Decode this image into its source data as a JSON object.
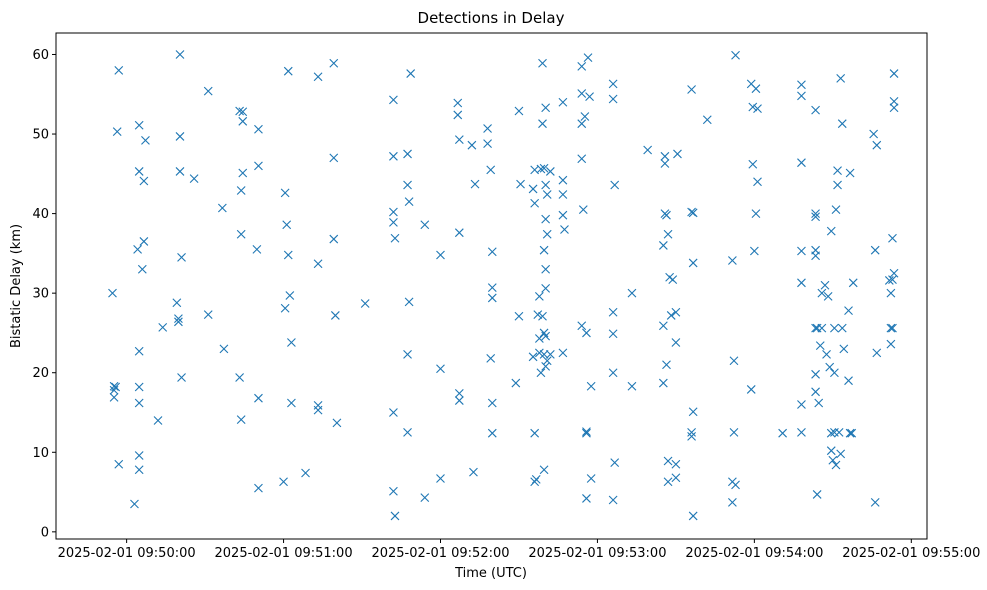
{
  "chart_data": {
    "type": "scatter",
    "title": "Detections in Delay",
    "xlabel": "Time (UTC)",
    "ylabel": "Bistatic Delay (km)",
    "marker": "x",
    "color": "#1f77b4",
    "x_unit": "minutes since 2025-02-01 09:50:00",
    "xlim": [
      -0.45,
      5.1
    ],
    "ylim": [
      -0.9,
      62.7
    ],
    "x_ticks": [
      {
        "value": 0,
        "label": "2025-02-01 09:50:00"
      },
      {
        "value": 1,
        "label": "2025-02-01 09:51:00"
      },
      {
        "value": 2,
        "label": "2025-02-01 09:52:00"
      },
      {
        "value": 3,
        "label": "2025-02-01 09:53:00"
      },
      {
        "value": 4,
        "label": "2025-02-01 09:54:00"
      },
      {
        "value": 5,
        "label": "2025-02-01 09:55:00"
      }
    ],
    "y_ticks": [
      {
        "value": 0,
        "label": "0"
      },
      {
        "value": 10,
        "label": "10"
      },
      {
        "value": 20,
        "label": "20"
      },
      {
        "value": 30,
        "label": "30"
      },
      {
        "value": 40,
        "label": "40"
      },
      {
        "value": 50,
        "label": "50"
      },
      {
        "value": 60,
        "label": "60"
      }
    ],
    "points": [
      [
        -0.09,
        30.0
      ],
      [
        -0.08,
        18.3
      ],
      [
        -0.08,
        17.8
      ],
      [
        -0.08,
        16.9
      ],
      [
        -0.07,
        18.2
      ],
      [
        -0.06,
        50.3
      ],
      [
        -0.05,
        58.0
      ],
      [
        -0.05,
        8.5
      ],
      [
        0.05,
        3.5
      ],
      [
        0.07,
        35.5
      ],
      [
        0.08,
        51.1
      ],
      [
        0.08,
        45.3
      ],
      [
        0.08,
        22.7
      ],
      [
        0.08,
        18.2
      ],
      [
        0.08,
        16.2
      ],
      [
        0.08,
        9.6
      ],
      [
        0.08,
        7.8
      ],
      [
        0.1,
        33.0
      ],
      [
        0.11,
        44.1
      ],
      [
        0.11,
        36.5
      ],
      [
        0.12,
        49.2
      ],
      [
        0.2,
        14.0
      ],
      [
        0.23,
        25.7
      ],
      [
        0.32,
        28.8
      ],
      [
        0.33,
        26.8
      ],
      [
        0.33,
        26.4
      ],
      [
        0.34,
        60.0
      ],
      [
        0.34,
        49.7
      ],
      [
        0.34,
        45.3
      ],
      [
        0.35,
        34.5
      ],
      [
        0.35,
        19.4
      ],
      [
        0.43,
        44.4
      ],
      [
        0.52,
        55.4
      ],
      [
        0.52,
        27.3
      ],
      [
        0.61,
        40.7
      ],
      [
        0.62,
        23.0
      ],
      [
        0.72,
        52.9
      ],
      [
        0.72,
        19.4
      ],
      [
        0.73,
        42.9
      ],
      [
        0.73,
        37.4
      ],
      [
        0.73,
        14.1
      ],
      [
        0.74,
        52.8
      ],
      [
        0.74,
        51.6
      ],
      [
        0.74,
        45.1
      ],
      [
        0.84,
        50.6
      ],
      [
        0.84,
        46.0
      ],
      [
        0.83,
        35.5
      ],
      [
        0.84,
        16.8
      ],
      [
        0.84,
        5.5
      ],
      [
        1.01,
        42.6
      ],
      [
        1.01,
        28.1
      ],
      [
        1.0,
        6.3
      ],
      [
        1.02,
        38.6
      ],
      [
        1.03,
        57.9
      ],
      [
        1.03,
        34.8
      ],
      [
        1.04,
        29.7
      ],
      [
        1.05,
        23.8
      ],
      [
        1.05,
        16.2
      ],
      [
        1.14,
        7.4
      ],
      [
        1.22,
        57.2
      ],
      [
        1.22,
        33.7
      ],
      [
        1.22,
        15.9
      ],
      [
        1.22,
        15.3
      ],
      [
        1.32,
        58.9
      ],
      [
        1.32,
        47.0
      ],
      [
        1.32,
        36.8
      ],
      [
        1.33,
        27.2
      ],
      [
        1.34,
        13.7
      ],
      [
        1.52,
        28.7
      ],
      [
        1.7,
        54.3
      ],
      [
        1.7,
        47.2
      ],
      [
        1.7,
        40.2
      ],
      [
        1.7,
        38.9
      ],
      [
        1.71,
        36.9
      ],
      [
        1.7,
        15.0
      ],
      [
        1.7,
        5.1
      ],
      [
        1.71,
        2.0
      ],
      [
        1.79,
        47.5
      ],
      [
        1.79,
        43.6
      ],
      [
        1.8,
        41.5
      ],
      [
        1.8,
        28.9
      ],
      [
        1.79,
        22.3
      ],
      [
        1.79,
        12.5
      ],
      [
        1.81,
        57.6
      ],
      [
        1.9,
        38.6
      ],
      [
        1.9,
        4.3
      ],
      [
        2.0,
        34.8
      ],
      [
        2.0,
        20.5
      ],
      [
        2.0,
        6.7
      ],
      [
        2.11,
        53.9
      ],
      [
        2.11,
        52.4
      ],
      [
        2.12,
        49.3
      ],
      [
        2.12,
        37.6
      ],
      [
        2.12,
        17.4
      ],
      [
        2.12,
        16.5
      ],
      [
        2.2,
        48.6
      ],
      [
        2.22,
        43.7
      ],
      [
        2.21,
        7.5
      ],
      [
        2.3,
        50.7
      ],
      [
        2.3,
        48.8
      ],
      [
        2.32,
        45.5
      ],
      [
        2.33,
        35.2
      ],
      [
        2.33,
        30.7
      ],
      [
        2.33,
        29.4
      ],
      [
        2.32,
        21.8
      ],
      [
        2.33,
        16.2
      ],
      [
        2.33,
        12.4
      ],
      [
        2.48,
        18.7
      ],
      [
        2.5,
        52.9
      ],
      [
        2.51,
        43.7
      ],
      [
        2.5,
        27.1
      ],
      [
        2.6,
        45.5
      ],
      [
        2.59,
        43.1
      ],
      [
        2.6,
        41.3
      ],
      [
        2.59,
        22.0
      ],
      [
        2.6,
        6.3
      ],
      [
        2.6,
        12.4
      ],
      [
        2.61,
        6.6
      ],
      [
        2.62,
        27.3
      ],
      [
        2.63,
        29.6
      ],
      [
        2.63,
        24.3
      ],
      [
        2.63,
        22.5
      ],
      [
        2.64,
        45.6
      ],
      [
        2.64,
        20.0
      ],
      [
        2.65,
        58.9
      ],
      [
        2.65,
        51.3
      ],
      [
        2.65,
        27.1
      ],
      [
        2.66,
        45.7
      ],
      [
        2.66,
        35.4
      ],
      [
        2.66,
        25.0
      ],
      [
        2.66,
        22.3
      ],
      [
        2.66,
        7.8
      ],
      [
        2.67,
        53.3
      ],
      [
        2.67,
        43.6
      ],
      [
        2.67,
        39.3
      ],
      [
        2.67,
        33.0
      ],
      [
        2.67,
        30.6
      ],
      [
        2.67,
        24.6
      ],
      [
        2.67,
        20.8
      ],
      [
        2.68,
        42.4
      ],
      [
        2.68,
        37.4
      ],
      [
        2.68,
        21.5
      ],
      [
        2.7,
        45.3
      ],
      [
        2.7,
        22.3
      ],
      [
        2.78,
        54.0
      ],
      [
        2.78,
        44.2
      ],
      [
        2.78,
        42.4
      ],
      [
        2.78,
        39.8
      ],
      [
        2.79,
        38.0
      ],
      [
        2.78,
        22.5
      ],
      [
        2.9,
        58.5
      ],
      [
        2.9,
        55.1
      ],
      [
        2.9,
        51.3
      ],
      [
        2.9,
        46.9
      ],
      [
        2.9,
        25.9
      ],
      [
        2.91,
        40.5
      ],
      [
        2.92,
        52.2
      ],
      [
        2.93,
        12.6
      ],
      [
        2.93,
        12.4
      ],
      [
        2.93,
        4.2
      ],
      [
        2.93,
        25.0
      ],
      [
        2.94,
        59.6
      ],
      [
        2.95,
        54.7
      ],
      [
        2.96,
        18.3
      ],
      [
        2.96,
        6.7
      ],
      [
        3.1,
        54.4
      ],
      [
        3.1,
        56.3
      ],
      [
        3.11,
        43.6
      ],
      [
        3.1,
        27.6
      ],
      [
        3.1,
        24.9
      ],
      [
        3.1,
        20.0
      ],
      [
        3.1,
        4.0
      ],
      [
        3.11,
        8.7
      ],
      [
        3.22,
        30.0
      ],
      [
        3.22,
        18.3
      ],
      [
        3.32,
        48.0
      ],
      [
        3.43,
        47.2
      ],
      [
        3.42,
        36.0
      ],
      [
        3.42,
        25.9
      ],
      [
        3.42,
        18.7
      ],
      [
        3.43,
        46.3
      ],
      [
        3.43,
        40.0
      ],
      [
        3.44,
        39.8
      ],
      [
        3.44,
        21.0
      ],
      [
        3.45,
        37.4
      ],
      [
        3.45,
        8.9
      ],
      [
        3.45,
        6.3
      ],
      [
        3.46,
        32.0
      ],
      [
        3.47,
        27.2
      ],
      [
        3.48,
        31.7
      ],
      [
        3.5,
        27.6
      ],
      [
        3.5,
        23.8
      ],
      [
        3.5,
        8.5
      ],
      [
        3.5,
        6.8
      ],
      [
        3.51,
        47.5
      ],
      [
        3.6,
        55.6
      ],
      [
        3.6,
        40.2
      ],
      [
        3.61,
        40.1
      ],
      [
        3.6,
        12.5
      ],
      [
        3.6,
        12.0
      ],
      [
        3.61,
        33.8
      ],
      [
        3.61,
        15.1
      ],
      [
        3.61,
        2.0
      ],
      [
        3.7,
        51.8
      ],
      [
        3.88,
        59.9
      ],
      [
        3.86,
        34.1
      ],
      [
        3.87,
        21.5
      ],
      [
        3.87,
        12.5
      ],
      [
        3.86,
        6.3
      ],
      [
        3.86,
        3.7
      ],
      [
        3.88,
        5.9
      ],
      [
        3.98,
        56.3
      ],
      [
        3.99,
        53.4
      ],
      [
        3.99,
        46.2
      ],
      [
        3.98,
        17.9
      ],
      [
        4.0,
        35.3
      ],
      [
        4.01,
        55.7
      ],
      [
        4.02,
        53.2
      ],
      [
        4.01,
        40.0
      ],
      [
        4.02,
        44.0
      ],
      [
        4.18,
        12.4
      ],
      [
        4.3,
        56.2
      ],
      [
        4.3,
        54.8
      ],
      [
        4.3,
        46.4
      ],
      [
        4.3,
        35.3
      ],
      [
        4.3,
        31.3
      ],
      [
        4.3,
        16.0
      ],
      [
        4.3,
        12.5
      ],
      [
        4.39,
        53.0
      ],
      [
        4.39,
        40.0
      ],
      [
        4.39,
        39.6
      ],
      [
        4.39,
        35.4
      ],
      [
        4.39,
        34.7
      ],
      [
        4.39,
        25.6
      ],
      [
        4.39,
        19.8
      ],
      [
        4.39,
        17.6
      ],
      [
        4.4,
        25.6
      ],
      [
        4.4,
        4.7
      ],
      [
        4.41,
        16.2
      ],
      [
        4.42,
        23.4
      ],
      [
        4.43,
        30.0
      ],
      [
        4.43,
        25.6
      ],
      [
        4.45,
        31.0
      ],
      [
        4.46,
        22.3
      ],
      [
        4.47,
        29.6
      ],
      [
        4.49,
        37.8
      ],
      [
        4.48,
        20.7
      ],
      [
        4.49,
        12.4
      ],
      [
        4.49,
        10.2
      ],
      [
        4.5,
        9.0
      ],
      [
        4.51,
        20.0
      ],
      [
        4.51,
        25.6
      ],
      [
        4.51,
        12.5
      ],
      [
        4.52,
        8.4
      ],
      [
        4.52,
        40.5
      ],
      [
        4.53,
        45.4
      ],
      [
        4.53,
        43.6
      ],
      [
        4.54,
        12.5
      ],
      [
        4.55,
        57.0
      ],
      [
        4.55,
        9.8
      ],
      [
        4.56,
        25.6
      ],
      [
        4.56,
        51.3
      ],
      [
        4.57,
        23.0
      ],
      [
        4.6,
        19.0
      ],
      [
        4.6,
        27.8
      ],
      [
        4.61,
        45.1
      ],
      [
        4.61,
        12.4
      ],
      [
        4.62,
        12.4
      ],
      [
        4.63,
        31.3
      ],
      [
        4.76,
        50.0
      ],
      [
        4.77,
        35.4
      ],
      [
        4.77,
        3.7
      ],
      [
        4.78,
        48.6
      ],
      [
        4.78,
        22.5
      ],
      [
        4.86,
        31.6
      ],
      [
        4.87,
        30.0
      ],
      [
        4.87,
        25.6
      ],
      [
        4.87,
        23.6
      ],
      [
        4.88,
        31.7
      ],
      [
        4.88,
        25.6
      ],
      [
        4.88,
        36.9
      ],
      [
        4.89,
        32.5
      ],
      [
        4.89,
        57.6
      ],
      [
        4.89,
        54.1
      ],
      [
        4.89,
        53.3
      ]
    ]
  }
}
